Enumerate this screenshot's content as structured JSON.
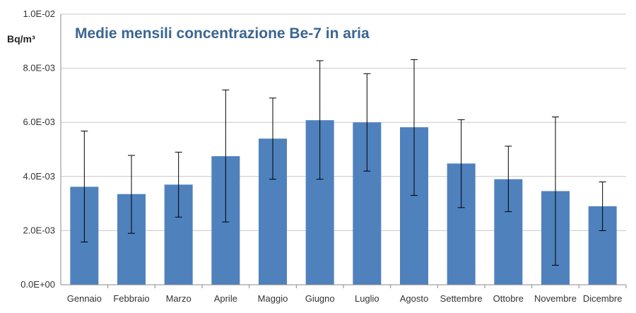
{
  "chart_data": {
    "type": "bar",
    "title": "Medie mensili concentrazione Be-7 in aria",
    "ylabel": "Bq/m³",
    "xlabel": "",
    "categories": [
      "Gennaio",
      "Febbraio",
      "Marzo",
      "Aprile",
      "Maggio",
      "Giugno",
      "Luglio",
      "Agosto",
      "Settembre",
      "Ottobre",
      "Novembre",
      "Dicembre"
    ],
    "values": [
      0.00362,
      0.00335,
      0.0037,
      0.00475,
      0.0054,
      0.00608,
      0.006,
      0.00582,
      0.00448,
      0.0039,
      0.00346,
      0.0029
    ],
    "error_low": [
      0.00158,
      0.0019,
      0.0025,
      0.00232,
      0.0039,
      0.0039,
      0.0042,
      0.0033,
      0.00285,
      0.0027,
      0.00072,
      0.002
    ],
    "error_high": [
      0.00568,
      0.00478,
      0.0049,
      0.0072,
      0.0069,
      0.00828,
      0.0078,
      0.00832,
      0.0061,
      0.00512,
      0.0062,
      0.0038
    ],
    "ylim": [
      0,
      0.01
    ],
    "yticks": [
      0,
      0.002,
      0.004,
      0.006,
      0.008,
      0.01
    ],
    "ytick_labels": [
      "0.0E+00",
      "2.0E-03",
      "4.0E-03",
      "6.0E-03",
      "8.0E-03",
      "1.0E-02"
    ],
    "grid": true,
    "bar_color": "#4F81BD",
    "gridline_color": "#C8C8C8",
    "title_color": "#3A6592"
  }
}
